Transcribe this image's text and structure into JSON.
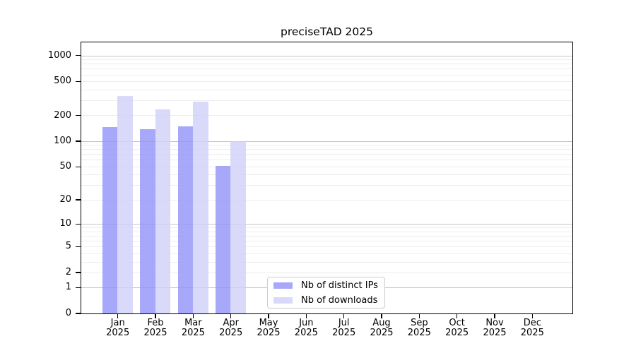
{
  "chart_data": {
    "type": "bar",
    "title": "preciseTAD 2025",
    "year_label": "2025",
    "months": [
      "Jan",
      "Feb",
      "Mar",
      "Apr",
      "May",
      "Jun",
      "Jul",
      "Aug",
      "Sep",
      "Oct",
      "Nov",
      "Dec"
    ],
    "series": [
      {
        "name": "Nb of distinct IPs",
        "color": "rgb(146,146,249)",
        "legend_color": "#a8a8fa",
        "opacity": 0.8,
        "values": [
          145,
          138,
          149,
          51,
          0,
          0,
          0,
          0,
          0,
          0,
          0,
          0
        ]
      },
      {
        "name": "Nb of downloads",
        "color": "rgb(208,208,248)",
        "legend_color": "#d9d9f9",
        "opacity": 0.8,
        "values": [
          337,
          236,
          291,
          100,
          0,
          0,
          0,
          0,
          0,
          0,
          0,
          0
        ]
      }
    ],
    "y_axis": {
      "scale": "log10(1+v)",
      "ticks": [
        0,
        1,
        2,
        5,
        10,
        20,
        50,
        100,
        200,
        500,
        1000
      ],
      "max": 1427,
      "major_gridlines": [
        1,
        10,
        100,
        1000
      ],
      "minor_gridline_decades": [
        1,
        10,
        100
      ],
      "grid": true
    },
    "legend": {
      "entries": [
        "Nb of distinct IPs",
        "Nb of downloads"
      ],
      "position": "bottom-left-of-center"
    }
  },
  "colors": {
    "background": "#ffffff",
    "axis": "#000000",
    "text": "#000000",
    "major_grid": "#c6c6c6",
    "minor_grid": "#ededed",
    "legend_border": "#cccccc"
  }
}
